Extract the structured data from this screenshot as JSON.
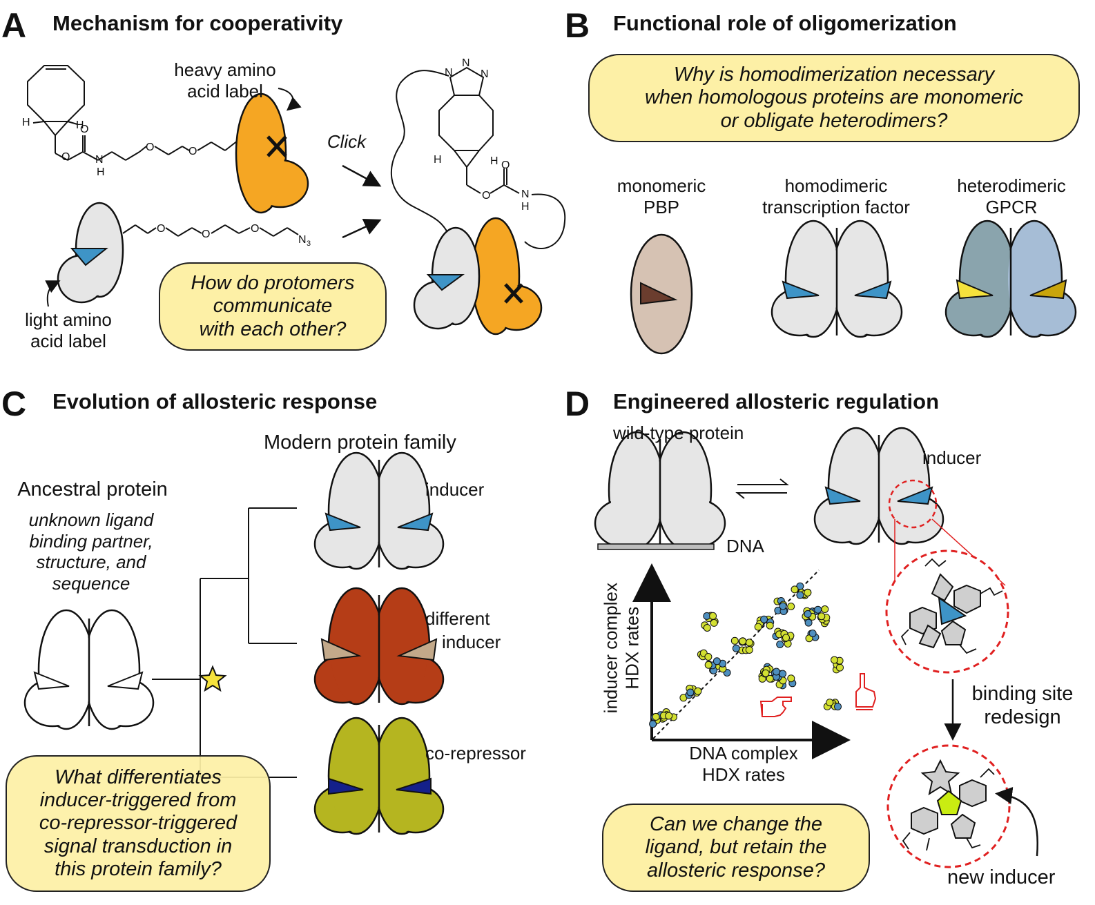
{
  "panels": {
    "A": {
      "letter": "A",
      "title": "Mechanism for cooperativity",
      "heavy_label": [
        "heavy amino",
        "acid label"
      ],
      "light_label": [
        "light amino",
        "acid label"
      ],
      "click": "Click",
      "question": [
        "How do protomers",
        "communicate",
        "with each other?"
      ],
      "atoms": {
        "H": "H",
        "O": "O",
        "N": "N",
        "N3": "N",
        "N3_sub": "3"
      }
    },
    "B": {
      "letter": "B",
      "title": "Functional role of oligomerization",
      "question": [
        "Why is homodimerization necessary",
        "when homologous proteins are monomeric",
        "or obligate heterodimers?"
      ],
      "labels": [
        [
          "monomeric",
          "PBP"
        ],
        [
          "homodimeric",
          "transcription factor"
        ],
        [
          "heterodimeric",
          "GPCR"
        ]
      ]
    },
    "C": {
      "letter": "C",
      "title": "Evolution of allosteric response",
      "modern_family": "Modern protein family",
      "ancestral_title": "Ancestral protein",
      "ancestral_desc": [
        "unknown ligand",
        "binding partner,",
        "structure, and",
        "sequence"
      ],
      "inducer": "inducer",
      "different_inducer": [
        "different",
        "inducer"
      ],
      "corepressor": "co-repressor",
      "question": [
        "What differentiates",
        "inducer-triggered from",
        "co-repressor-triggered",
        "signal transduction in",
        "this protein family?"
      ]
    },
    "D": {
      "letter": "D",
      "title": "Engineered allosteric regulation",
      "wild_type": "wild-type protein",
      "inducer": "inducer",
      "dna": "DNA",
      "ylabel": [
        "inducer complex",
        "HDX rates"
      ],
      "xlabel": [
        "DNA complex",
        "HDX rates"
      ],
      "redesign": [
        "binding site",
        "redesign"
      ],
      "new_inducer": "new inducer",
      "question": [
        "Can we change the",
        "ligand, but retain the",
        "allosteric response?"
      ]
    }
  },
  "colors": {
    "orange": "#f5a623",
    "gray": "#e6e6e6",
    "blue_ligand": "#3e94c7",
    "pbp": "#d6c2b3",
    "pbp_ligand": "#6b3d2e",
    "gpcr_left": "#8aa4ad",
    "gpcr_right": "#a6bdd6",
    "gpcr_ligand_left": "#f5e23c",
    "gpcr_ligand_right": "#c9a50c",
    "red_protein": "#b53d17",
    "tan_ligand": "#c3a98a",
    "olive_protein": "#b5b520",
    "navy_ligand": "#14208a",
    "question_fill": "#fdf0a6",
    "star": "#f5e23c",
    "dashed_red": "#e02020",
    "dot_yellow": "#d3e032",
    "dot_blue": "#4e8fbf",
    "new_inducer": "#c9ec12"
  },
  "icons": {
    "x_mark": "x-mark-icon",
    "star": "star-icon",
    "pointing_hand_right": "pointing-hand-icon",
    "pointing_hand_up": "pointing-hand-up-icon"
  }
}
